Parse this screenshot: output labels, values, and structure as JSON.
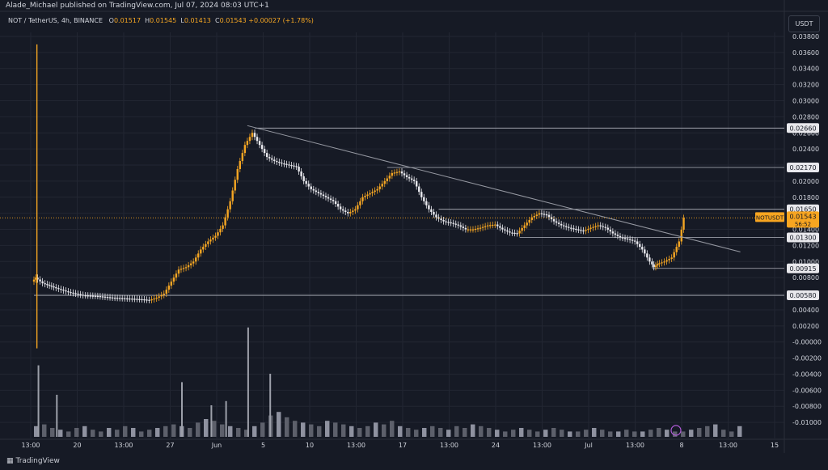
{
  "header": {
    "published": "Alade_Michael published on TradingView.com, Jul 07, 2024 08:03 UTC+1",
    "symbol": "NOT / TetherUS, 4h, BINANCE",
    "ohlc": [
      {
        "k": "O",
        "v": "0.01517"
      },
      {
        "k": "H",
        "v": "0.01545"
      },
      {
        "k": "L",
        "v": "0.01413"
      },
      {
        "k": "C",
        "v": "0.01543"
      }
    ],
    "change": "+0.00027 (+1.78%)",
    "unit": "USDT"
  },
  "footer": {
    "brand": "TradingView"
  },
  "colors": {
    "background": "#161a25",
    "grid": "#222632",
    "text": "#d1d4dc",
    "up": "#f5a623",
    "down": "#e9e9ee",
    "trendline": "#9598a1",
    "last_price": "#f7a520"
  },
  "chart_data": {
    "type": "candlestick",
    "timeframe": "4h",
    "ylim": [
      -0.012,
      0.0385
    ],
    "y_ticks": [
      "0.03800",
      "0.03600",
      "0.03400",
      "0.03200",
      "0.03000",
      "0.02800",
      "0.02600",
      "0.02400",
      "0.02200",
      "0.02000",
      "0.01800",
      "0.01600",
      "0.01400",
      "0.01200",
      "0.01000",
      "0.00800",
      "0.00600",
      "0.00400",
      "0.00200",
      "-0.00000",
      "-0.00200",
      "-0.00400",
      "-0.00600",
      "-0.00800",
      "-0.01000"
    ],
    "x_ticks": [
      "13:00",
      "20",
      "13:00",
      "27",
      "Jun",
      "5",
      "10",
      "13:00",
      "17",
      "13:00",
      "24",
      "13:00",
      "Jul",
      "13:00",
      "8",
      "13:00",
      "15"
    ],
    "grid": true,
    "price_path": [
      [
        0.0,
        0.0075
      ],
      [
        0.5,
        0.008
      ],
      [
        1.5,
        0.0073
      ],
      [
        3,
        0.0068
      ],
      [
        5,
        0.0062
      ],
      [
        7,
        0.0058
      ],
      [
        9,
        0.0057
      ],
      [
        11,
        0.0055
      ],
      [
        13,
        0.0054
      ],
      [
        15,
        0.0053
      ],
      [
        16,
        0.0052
      ],
      [
        17,
        0.0055
      ],
      [
        18,
        0.006
      ],
      [
        19,
        0.0075
      ],
      [
        20,
        0.009
      ],
      [
        21,
        0.0093
      ],
      [
        22,
        0.01
      ],
      [
        23,
        0.0115
      ],
      [
        24,
        0.0125
      ],
      [
        25,
        0.0132
      ],
      [
        26,
        0.0145
      ],
      [
        27,
        0.0175
      ],
      [
        28,
        0.0215
      ],
      [
        29,
        0.0245
      ],
      [
        30,
        0.026
      ],
      [
        31,
        0.0245
      ],
      [
        32,
        0.023
      ],
      [
        33,
        0.0225
      ],
      [
        34,
        0.0222
      ],
      [
        35,
        0.022
      ],
      [
        36,
        0.0218
      ],
      [
        37,
        0.02
      ],
      [
        38,
        0.019
      ],
      [
        39,
        0.0185
      ],
      [
        40,
        0.018
      ],
      [
        41,
        0.0175
      ],
      [
        42,
        0.0165
      ],
      [
        43,
        0.016
      ],
      [
        44,
        0.0165
      ],
      [
        45,
        0.018
      ],
      [
        46,
        0.0185
      ],
      [
        47,
        0.019
      ],
      [
        48,
        0.02
      ],
      [
        49,
        0.021
      ],
      [
        50,
        0.0212
      ],
      [
        51,
        0.0205
      ],
      [
        52,
        0.02
      ],
      [
        53,
        0.018
      ],
      [
        54,
        0.0165
      ],
      [
        55,
        0.0155
      ],
      [
        56,
        0.015
      ],
      [
        57,
        0.0148
      ],
      [
        58,
        0.0145
      ],
      [
        59,
        0.014
      ],
      [
        60,
        0.014
      ],
      [
        61,
        0.0142
      ],
      [
        62,
        0.0145
      ],
      [
        63,
        0.0146
      ],
      [
        64,
        0.014
      ],
      [
        65,
        0.0136
      ],
      [
        66,
        0.0135
      ],
      [
        67,
        0.0145
      ],
      [
        68,
        0.0155
      ],
      [
        69,
        0.016
      ],
      [
        70,
        0.0158
      ],
      [
        71,
        0.015
      ],
      [
        72,
        0.0145
      ],
      [
        73,
        0.0142
      ],
      [
        74,
        0.014
      ],
      [
        75,
        0.0138
      ],
      [
        76,
        0.0142
      ],
      [
        77,
        0.0145
      ],
      [
        78,
        0.0142
      ],
      [
        79,
        0.0135
      ],
      [
        80,
        0.013
      ],
      [
        81,
        0.0128
      ],
      [
        82,
        0.0125
      ],
      [
        83,
        0.0115
      ],
      [
        84,
        0.01
      ],
      [
        84.5,
        0.0093
      ],
      [
        85,
        0.0097
      ],
      [
        86,
        0.01
      ],
      [
        87,
        0.0105
      ],
      [
        88,
        0.0125
      ],
      [
        88.6,
        0.01543
      ]
    ],
    "x_domain": [
      0,
      100
    ],
    "trendline": {
      "from": [
        29,
        0.0269
      ],
      "to": [
        96,
        0.0112
      ]
    },
    "horizontal_levels": [
      {
        "label": "0.02660",
        "value": 0.0266,
        "x_from": 30
      },
      {
        "label": "0.02170",
        "value": 0.0217,
        "x_from": 48
      },
      {
        "label": "0.01650",
        "value": 0.0165,
        "x_from": 55
      },
      {
        "label": "0.01300",
        "value": 0.013,
        "x_from": 66
      },
      {
        "label": "0.00915",
        "value": 0.00915,
        "x_from": 84
      },
      {
        "label": "0.00580",
        "value": 0.0058,
        "x_from": 0
      }
    ],
    "last_price": {
      "symbol": "NOTUSDT",
      "value": 0.01543,
      "label": "0.01543",
      "countdown": "56:52"
    },
    "volume_profile": [
      6,
      7,
      5,
      4,
      3,
      5,
      6,
      4,
      3,
      5,
      4,
      6,
      5,
      3,
      4,
      5,
      6,
      7,
      6,
      5,
      8,
      10,
      9,
      7,
      6,
      5,
      4,
      6,
      8,
      12,
      14,
      11,
      9,
      8,
      7,
      6,
      9,
      8,
      7,
      6,
      5,
      6,
      8,
      7,
      9,
      6,
      5,
      4,
      5,
      6,
      5,
      4,
      6,
      5,
      7,
      6,
      5,
      4,
      3,
      4,
      5,
      4,
      3,
      4,
      5,
      4,
      3,
      3,
      4,
      5,
      4,
      3,
      3,
      4,
      3,
      3,
      4,
      5,
      4,
      3,
      3,
      4,
      5,
      6,
      7,
      4,
      3,
      6
    ],
    "spikes": [
      [
        0.5,
        34
      ],
      [
        3,
        20
      ],
      [
        20,
        26
      ],
      [
        24,
        15
      ],
      [
        26,
        17
      ],
      [
        29,
        52
      ],
      [
        32,
        30
      ]
    ]
  }
}
